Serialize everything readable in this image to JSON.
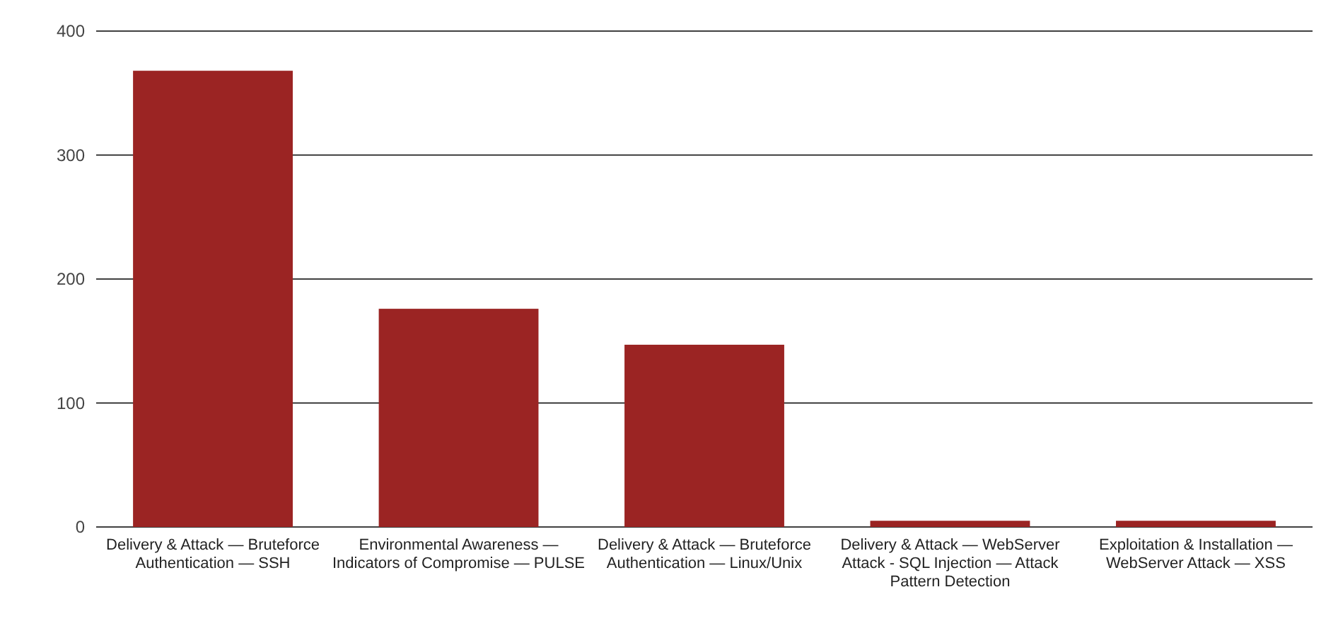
{
  "chart_data": {
    "type": "bar",
    "categories": [
      "Delivery & Attack — Bruteforce Authentication — SSH",
      "Environmental Awareness — Indicators of Compromise — PULSE",
      "Delivery & Attack — Bruteforce Authentication — Linux/Unix",
      "Delivery & Attack — WebServer Attack - SQL Injection — Attack Pattern Detection",
      "Exploitation & Installation — WebServer Attack — XSS"
    ],
    "values": [
      368,
      176,
      147,
      5,
      5
    ],
    "color": "#9b2423",
    "ylim": [
      0,
      400
    ],
    "yticks": [
      0,
      100,
      200,
      300,
      400
    ],
    "grid": "y"
  }
}
